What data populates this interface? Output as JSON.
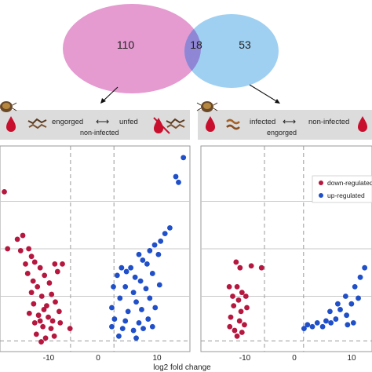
{
  "venn": {
    "left_only": "110",
    "overlap": "18",
    "right_only": "53",
    "colors": {
      "left": "#e59ad0",
      "right": "#9fd0f2",
      "overlap": "#8f86d6"
    }
  },
  "left_panel": {
    "header_left": "engorged",
    "header_arrow": "⟷",
    "header_right": "unfed",
    "header_sub": "non-infected"
  },
  "right_panel": {
    "header_left": "infected",
    "header_arrow": "⟷",
    "header_right": "non-infected",
    "header_sub": "engorged",
    "legend": [
      {
        "label": "down-regulated",
        "color": "#b5173f"
      },
      {
        "label": "up-regulated",
        "color": "#1f4fc9"
      }
    ]
  },
  "chart_data": [
    {
      "type": "scatter",
      "panel": "left",
      "xlabel": "log2 fold change",
      "ylabel": "",
      "xticks": [
        "-10",
        "0",
        "10"
      ],
      "xlim": [
        -17,
        18
      ],
      "ylim": [
        0,
        100
      ],
      "series": [
        {
          "name": "down-regulated",
          "color": "#b5173f",
          "points": [
            [
              -16.2,
              80
            ],
            [
              -15.6,
              50
            ],
            [
              -13.8,
              55
            ],
            [
              -12.8,
              57
            ],
            [
              -13.2,
              49
            ],
            [
              -12.3,
              42
            ],
            [
              -11.7,
              50
            ],
            [
              -11.2,
              46
            ],
            [
              -11.9,
              37
            ],
            [
              -10.6,
              43
            ],
            [
              -10.9,
              33
            ],
            [
              -9.6,
              40
            ],
            [
              -8.8,
              36
            ],
            [
              -10.1,
              30
            ],
            [
              -7.9,
              32
            ],
            [
              -6.9,
              42
            ],
            [
              -5.5,
              42
            ],
            [
              -6.4,
              38
            ],
            [
              -11.2,
              27
            ],
            [
              -9.3,
              25
            ],
            [
              -7.5,
              26
            ],
            [
              -10.8,
              21
            ],
            [
              -8.4,
              20
            ],
            [
              -6.8,
              22
            ],
            [
              -11.6,
              16
            ],
            [
              -9.9,
              15
            ],
            [
              -8.1,
              14
            ],
            [
              -6.1,
              17
            ],
            [
              -10.6,
              11
            ],
            [
              -9.1,
              9
            ],
            [
              -7.6,
              8
            ],
            [
              -5.9,
              11
            ],
            [
              -4.1,
              8
            ],
            [
              -10.3,
              5
            ],
            [
              -8.6,
              3
            ],
            [
              -7.0,
              4
            ],
            [
              -9.6,
              12
            ],
            [
              -8.9,
              18
            ],
            [
              -7.3,
              12
            ],
            [
              -9.4,
              1
            ]
          ]
        },
        {
          "name": "up-regulated",
          "color": "#1f4fc9",
          "points": [
            [
              16.8,
              98
            ],
            [
              15.4,
              88
            ],
            [
              15.9,
              85
            ],
            [
              14.3,
              61
            ],
            [
              13.4,
              58
            ],
            [
              12.6,
              54
            ],
            [
              11.5,
              52
            ],
            [
              10.6,
              49
            ],
            [
              12.2,
              47
            ],
            [
              8.6,
              47
            ],
            [
              9.3,
              44
            ],
            [
              10.1,
              42
            ],
            [
              7.1,
              40
            ],
            [
              6.3,
              38
            ],
            [
              5.4,
              40
            ],
            [
              4.6,
              36
            ],
            [
              7.9,
              35
            ],
            [
              8.9,
              33
            ],
            [
              11.1,
              37
            ],
            [
              3.9,
              30
            ],
            [
              6.1,
              30
            ],
            [
              7.6,
              27
            ],
            [
              9.9,
              29
            ],
            [
              12.4,
              31
            ],
            [
              5.1,
              24
            ],
            [
              8.1,
              22
            ],
            [
              10.6,
              24
            ],
            [
              3.6,
              19
            ],
            [
              6.6,
              17
            ],
            [
              9.1,
              18
            ],
            [
              11.6,
              19
            ],
            [
              4.1,
              13
            ],
            [
              6.1,
              12
            ],
            [
              8.6,
              11
            ],
            [
              10.3,
              13
            ],
            [
              3.6,
              9
            ],
            [
              5.6,
              8
            ],
            [
              7.6,
              7
            ],
            [
              9.4,
              8
            ],
            [
              11.1,
              9
            ],
            [
              4.9,
              4
            ],
            [
              8.1,
              3
            ]
          ]
        }
      ]
    },
    {
      "type": "scatter",
      "panel": "right",
      "xlabel": "",
      "ylabel": "",
      "xticks": [
        "-10",
        "0",
        "10"
      ],
      "xlim": [
        -17,
        18
      ],
      "ylim": [
        0,
        100
      ],
      "series": [
        {
          "name": "down-regulated",
          "color": "#b5173f",
          "points": [
            [
              -9.8,
              43
            ],
            [
              -9.0,
              40
            ],
            [
              -6.7,
              41
            ],
            [
              -4.6,
              40
            ],
            [
              -11.2,
              30
            ],
            [
              -9.6,
              30
            ],
            [
              -8.6,
              27
            ],
            [
              -10.5,
              25
            ],
            [
              -9.3,
              23
            ],
            [
              -7.8,
              25
            ],
            [
              -10.3,
              20
            ],
            [
              -8.8,
              17
            ],
            [
              -10.9,
              14
            ],
            [
              -9.1,
              12
            ],
            [
              -8.1,
              10
            ],
            [
              -10.1,
              7
            ],
            [
              -9.6,
              4
            ],
            [
              -8.6,
              6
            ],
            [
              -11.1,
              9
            ],
            [
              -7.6,
              19
            ]
          ]
        },
        {
          "name": "up-regulated",
          "color": "#1f4fc9",
          "points": [
            [
              16.5,
              40
            ],
            [
              15.6,
              35
            ],
            [
              14.5,
              30
            ],
            [
              15.2,
              24
            ],
            [
              12.6,
              25
            ],
            [
              13.8,
              21
            ],
            [
              11.5,
              18
            ],
            [
              12.8,
              15
            ],
            [
              10.6,
              13
            ],
            [
              9.6,
              11
            ],
            [
              8.6,
              12
            ],
            [
              7.9,
              9
            ],
            [
              6.8,
              11
            ],
            [
              5.8,
              9
            ],
            [
              4.8,
              10
            ],
            [
              4.1,
              8
            ],
            [
              9.4,
              17
            ],
            [
              11.0,
              21
            ],
            [
              13.0,
              10
            ],
            [
              14.2,
              11
            ]
          ]
        }
      ]
    }
  ]
}
